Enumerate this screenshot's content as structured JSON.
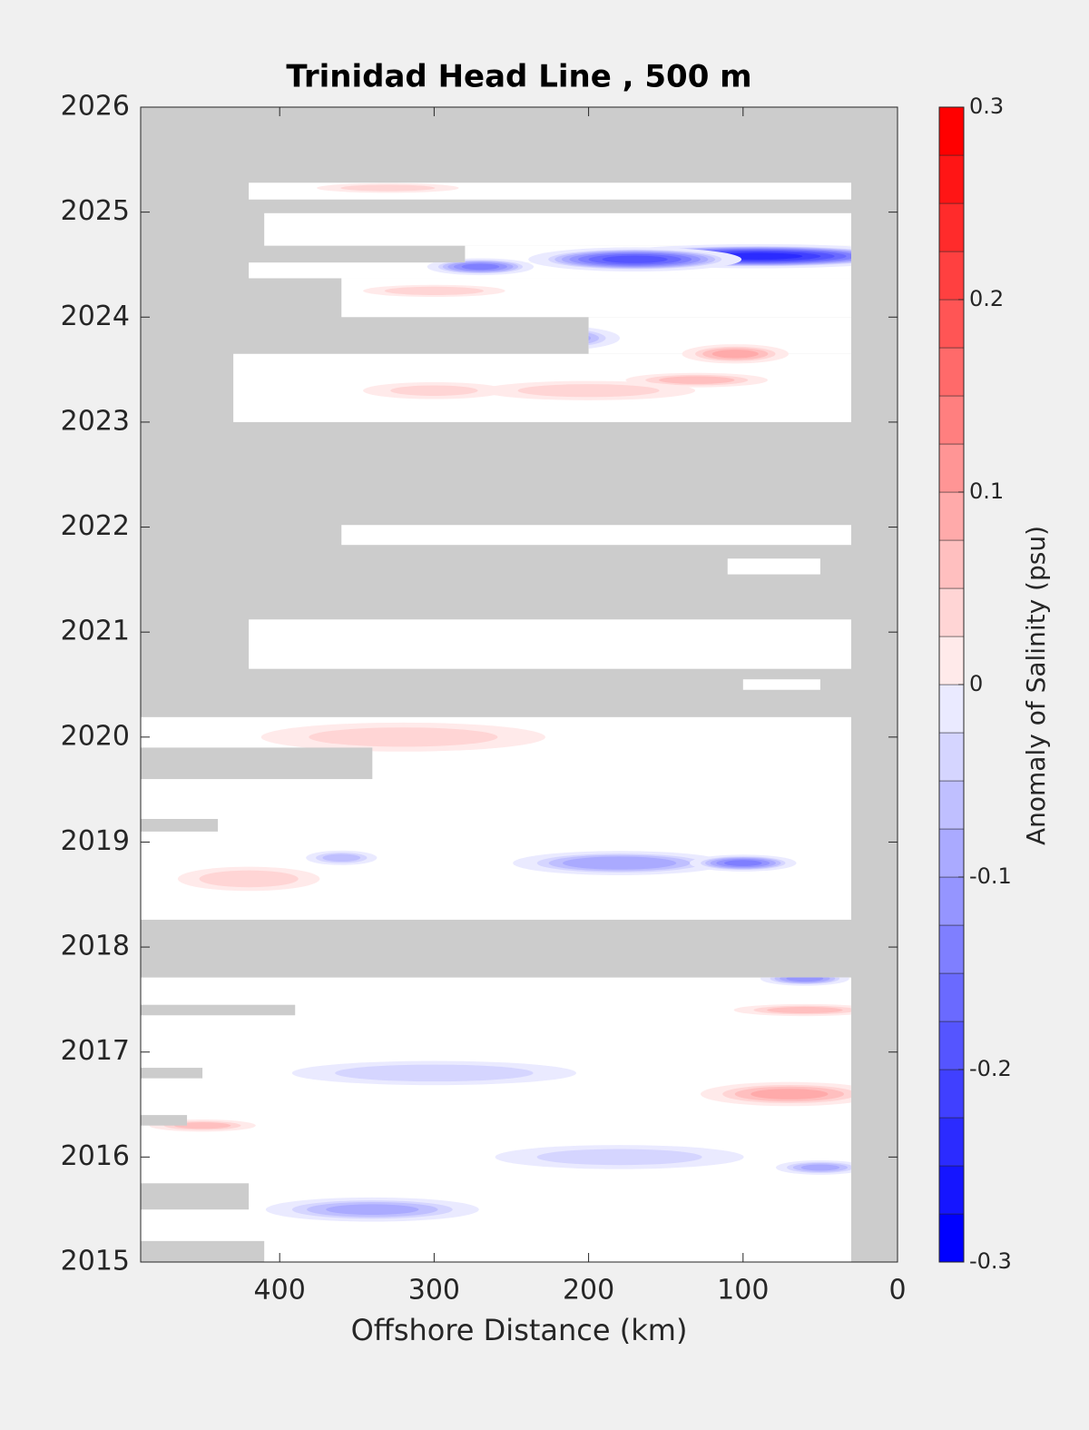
{
  "chart_data": {
    "type": "contour",
    "title": "Trinidad Head Line , 500 m",
    "xlabel": "Offshore Distance (km)",
    "colorbar_label": "Anomaly of Salinity (psu)",
    "xlim": [
      490,
      0
    ],
    "xticks": [
      400,
      300,
      200,
      100,
      0
    ],
    "ylim": [
      2015,
      2026
    ],
    "yticks": [
      2015,
      2016,
      2017,
      2018,
      2019,
      2020,
      2021,
      2022,
      2023,
      2024,
      2025,
      2026
    ],
    "clim": [
      -0.3,
      0.3
    ],
    "cticks": [
      -0.3,
      -0.2,
      -0.1,
      0,
      0.1,
      0.2,
      0.3
    ],
    "level_step": 0.025,
    "cmap_low": "#0000ff",
    "cmap_high": "#ff0000",
    "nan_color": "#cccccc",
    "coverage": [
      {
        "x": [
          420,
          30
        ],
        "y": [
          2025.12,
          2025.28
        ]
      },
      {
        "x": [
          410,
          30
        ],
        "y": [
          2024.68,
          2024.99
        ]
      },
      {
        "x": [
          280,
          30
        ],
        "y": [
          2024.52,
          2024.68
        ]
      },
      {
        "x": [
          420,
          30
        ],
        "y": [
          2024.37,
          2024.52
        ]
      },
      {
        "x": [
          360,
          30
        ],
        "y": [
          2024.0,
          2024.37
        ]
      },
      {
        "x": [
          200,
          30
        ],
        "y": [
          2023.65,
          2024.0
        ]
      },
      {
        "x": [
          430,
          30
        ],
        "y": [
          2023.0,
          2023.65
        ]
      },
      {
        "x": [
          360,
          30
        ],
        "y": [
          2021.83,
          2022.02
        ]
      },
      {
        "x": [
          110,
          50
        ],
        "y": [
          2021.55,
          2021.7
        ]
      },
      {
        "x": [
          420,
          30
        ],
        "y": [
          2020.65,
          2021.12
        ]
      },
      {
        "x": [
          100,
          50
        ],
        "y": [
          2020.45,
          2020.55
        ]
      },
      {
        "x": [
          490,
          30
        ],
        "y": [
          2018.26,
          2020.19
        ]
      },
      {
        "x": [
          490,
          30
        ],
        "y": [
          2015.0,
          2017.71
        ]
      }
    ],
    "gaps": [
      {
        "x": [
          490,
          340
        ],
        "y": [
          2019.6,
          2019.9
        ]
      },
      {
        "x": [
          490,
          440
        ],
        "y": [
          2019.1,
          2019.22
        ]
      },
      {
        "x": [
          490,
          390
        ],
        "y": [
          2017.35,
          2017.45
        ]
      },
      {
        "x": [
          490,
          450
        ],
        "y": [
          2016.75,
          2016.85
        ]
      },
      {
        "x": [
          490,
          460
        ],
        "y": [
          2016.3,
          2016.4
        ]
      },
      {
        "x": [
          490,
          420
        ],
        "y": [
          2015.5,
          2015.75
        ]
      },
      {
        "x": [
          490,
          410
        ],
        "y": [
          2015.0,
          2015.2
        ]
      }
    ],
    "features": [
      {
        "x": 90,
        "y": 2024.58,
        "value": -0.25,
        "rx": 90,
        "ry": 0.1
      },
      {
        "x": 170,
        "y": 2024.55,
        "value": -0.2,
        "rx": 60,
        "ry": 0.1
      },
      {
        "x": 270,
        "y": 2024.48,
        "value": -0.15,
        "rx": 30,
        "ry": 0.07
      },
      {
        "x": 220,
        "y": 2023.8,
        "value": -0.12,
        "rx": 35,
        "ry": 0.1
      },
      {
        "x": 105,
        "y": 2023.65,
        "value": 0.1,
        "rx": 30,
        "ry": 0.08
      },
      {
        "x": 130,
        "y": 2023.4,
        "value": 0.08,
        "rx": 40,
        "ry": 0.06
      },
      {
        "x": 200,
        "y": 2023.3,
        "value": 0.06,
        "rx": 60,
        "ry": 0.08
      },
      {
        "x": 300,
        "y": 2023.3,
        "value": 0.05,
        "rx": 40,
        "ry": 0.07
      },
      {
        "x": 300,
        "y": 2024.25,
        "value": 0.07,
        "rx": 40,
        "ry": 0.05
      },
      {
        "x": 330,
        "y": 2025.23,
        "value": 0.06,
        "rx": 40,
        "ry": 0.04
      },
      {
        "x": 320,
        "y": 2020.0,
        "value": 0.06,
        "rx": 80,
        "ry": 0.12
      },
      {
        "x": 180,
        "y": 2018.8,
        "value": -0.12,
        "rx": 60,
        "ry": 0.1
      },
      {
        "x": 100,
        "y": 2018.8,
        "value": -0.15,
        "rx": 30,
        "ry": 0.07
      },
      {
        "x": 360,
        "y": 2018.85,
        "value": -0.08,
        "rx": 20,
        "ry": 0.06
      },
      {
        "x": 420,
        "y": 2018.65,
        "value": 0.07,
        "rx": 40,
        "ry": 0.1
      },
      {
        "x": 300,
        "y": 2016.8,
        "value": -0.07,
        "rx": 80,
        "ry": 0.1
      },
      {
        "x": 70,
        "y": 2016.6,
        "value": 0.1,
        "rx": 50,
        "ry": 0.1
      },
      {
        "x": 340,
        "y": 2015.5,
        "value": -0.1,
        "rx": 60,
        "ry": 0.1
      },
      {
        "x": 60,
        "y": 2017.7,
        "value": -0.13,
        "rx": 25,
        "ry": 0.06
      },
      {
        "x": 60,
        "y": 2017.4,
        "value": 0.08,
        "rx": 40,
        "ry": 0.05
      },
      {
        "x": 180,
        "y": 2016.0,
        "value": -0.06,
        "rx": 70,
        "ry": 0.1
      },
      {
        "x": 50,
        "y": 2015.9,
        "value": -0.1,
        "rx": 25,
        "ry": 0.06
      },
      {
        "x": 450,
        "y": 2016.3,
        "value": 0.08,
        "rx": 30,
        "ry": 0.05
      }
    ]
  }
}
